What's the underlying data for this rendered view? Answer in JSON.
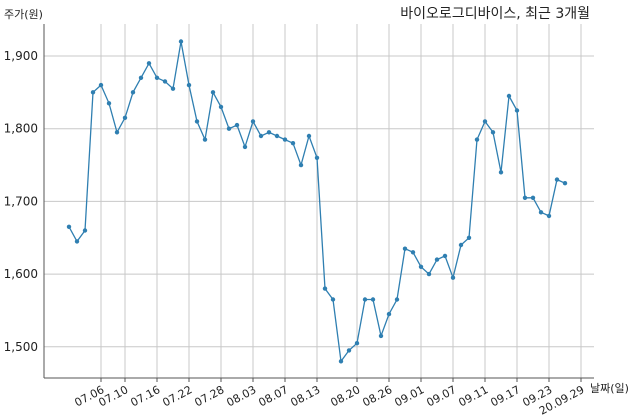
{
  "chart_data": {
    "type": "line",
    "title": "바이오로그디바이스, 최근 3개월",
    "ylabel": "주가(원)",
    "xlabel": "날짜(일)",
    "ylim": [
      1450,
      1950
    ],
    "yticks": [
      1500,
      1600,
      1700,
      1800,
      1900
    ],
    "ytick_labels": [
      "1,500",
      "1,600",
      "1,700",
      "1,800",
      "1,900"
    ],
    "xtick_labels": [
      "07.06",
      "07.10",
      "07.16",
      "07.22",
      "07.28",
      "08.03",
      "08.07",
      "08.13",
      "08.20",
      "08.26",
      "09.01",
      "09.07",
      "09.11",
      "09.17",
      "09.23",
      "20.09.29"
    ],
    "xtick_index": [
      4,
      7,
      11,
      15,
      19,
      23,
      27,
      31,
      36,
      40,
      44,
      48,
      52,
      56,
      60,
      64
    ],
    "grid": true,
    "color": "#2f7fb1",
    "series": [
      {
        "values": [
          1665,
          1645,
          1660,
          1850,
          1860,
          1835,
          1795,
          1815,
          1850,
          1870,
          1890,
          1870,
          1865,
          1855,
          1920,
          1860,
          1810,
          1785,
          1850,
          1830,
          1800,
          1805,
          1775,
          1810,
          1790,
          1795,
          1790,
          1785,
          1780,
          1750,
          1790,
          1760,
          1580,
          1565,
          1480,
          1495,
          1505,
          1565,
          1565,
          1515,
          1545,
          1565,
          1635,
          1630,
          1610,
          1600,
          1620,
          1625,
          1595,
          1640,
          1650,
          1785,
          1810,
          1795,
          1740,
          1845,
          1825,
          1705,
          1705,
          1685,
          1680,
          1730,
          1725
        ]
      }
    ]
  }
}
